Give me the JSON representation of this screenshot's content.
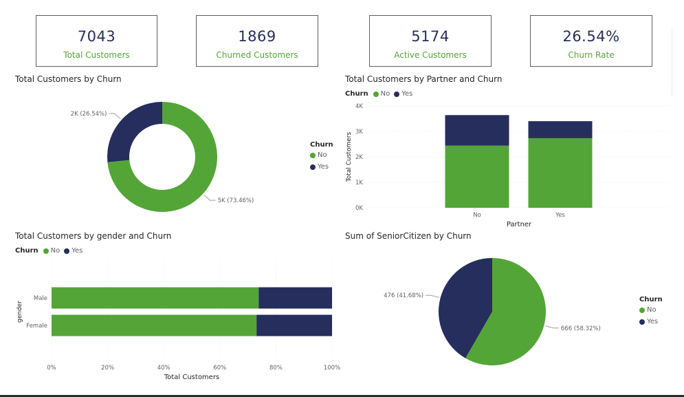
{
  "colors": {
    "no": "#53a538",
    "yes": "#252e5c",
    "card_value": "#252e5c",
    "card_label": "#53a538"
  },
  "kpis": [
    {
      "value": "7043",
      "label": "Total Customers"
    },
    {
      "value": "1869",
      "label": "Churned Customers"
    },
    {
      "value": "5174",
      "label": "Active Customers"
    },
    {
      "value": "26.54%",
      "label": "Churn Rate"
    }
  ],
  "legend": {
    "title": "Churn",
    "no": "No",
    "yes": "Yes"
  },
  "chart_data": [
    {
      "type": "pie",
      "variant": "donut",
      "title": "Total Customers by Churn",
      "categories": [
        "No",
        "Yes"
      ],
      "values": [
        5174,
        1869
      ],
      "data_labels": [
        "5K (73.46%)",
        "2K (26.54%)"
      ],
      "legend_title": "Churn",
      "legend_placement": "right"
    },
    {
      "type": "bar",
      "stacked": true,
      "orientation": "vertical",
      "title": "Total Customers by Partner and Churn",
      "categories": [
        "No",
        "Yes"
      ],
      "series": [
        {
          "name": "No",
          "values": [
            2441,
            2733
          ]
        },
        {
          "name": "Yes",
          "values": [
            1200,
            669
          ]
        }
      ],
      "xlabel": "Partner",
      "ylabel": "Total Customers",
      "ylim": [
        0,
        4000
      ],
      "yticks": [
        "0K",
        "1K",
        "2K",
        "3K",
        "4K"
      ],
      "legend_title": "Churn",
      "legend_placement": "top-left",
      "grid": true
    },
    {
      "type": "bar",
      "stacked": true,
      "orientation": "horizontal",
      "percent": true,
      "title": "Total Customers by gender and Churn",
      "categories": [
        "Male",
        "Female"
      ],
      "series": [
        {
          "name": "No",
          "values": [
            73.84,
            73.08
          ]
        },
        {
          "name": "Yes",
          "values": [
            26.16,
            26.92
          ]
        }
      ],
      "xlabel": "Total Customers",
      "ylabel": "gender",
      "xlim": [
        0,
        100
      ],
      "xticks": [
        "0%",
        "20%",
        "40%",
        "60%",
        "80%",
        "100%"
      ],
      "legend_title": "Churn",
      "legend_placement": "top-left",
      "grid": true
    },
    {
      "type": "pie",
      "title": "Sum of SeniorCitizen by Churn",
      "categories": [
        "No",
        "Yes"
      ],
      "values": [
        666,
        476
      ],
      "data_labels": [
        "666 (58.32%)",
        "476 (41.68%)"
      ],
      "legend_title": "Churn",
      "legend_placement": "right"
    }
  ]
}
